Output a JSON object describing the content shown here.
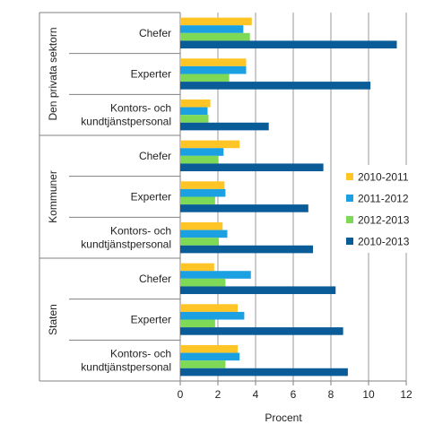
{
  "chart_data": {
    "type": "bar",
    "orientation": "horizontal",
    "xlabel": "Procent",
    "xlim": [
      0,
      12
    ],
    "xticks": [
      0,
      2,
      4,
      6,
      8,
      10,
      12
    ],
    "grid": "vertical",
    "legend_position": "right",
    "groups": [
      {
        "name": "Den privata sektorn",
        "categories": [
          {
            "label_lines": [
              "Chefer"
            ],
            "values": [
              3.8,
              3.35,
              3.7,
              11.5
            ]
          },
          {
            "label_lines": [
              "Experter"
            ],
            "values": [
              3.5,
              3.5,
              2.6,
              10.1
            ]
          },
          {
            "label_lines": [
              "Kontors- och",
              "kundtjänstpersonal"
            ],
            "values": [
              1.6,
              1.45,
              1.5,
              4.7
            ]
          }
        ]
      },
      {
        "name": "Kommuner",
        "categories": [
          {
            "label_lines": [
              "Chefer"
            ],
            "values": [
              3.15,
              2.3,
              2.0,
              7.6
            ]
          },
          {
            "label_lines": [
              "Experter"
            ],
            "values": [
              2.35,
              2.4,
              1.85,
              6.8
            ]
          },
          {
            "label_lines": [
              "Kontors- och",
              "kundtjänstpersonal"
            ],
            "values": [
              2.25,
              2.5,
              2.05,
              7.05
            ]
          }
        ]
      },
      {
        "name": "Staten",
        "categories": [
          {
            "label_lines": [
              "Chefer"
            ],
            "values": [
              1.8,
              3.75,
              2.4,
              8.25
            ]
          },
          {
            "label_lines": [
              "Experter"
            ],
            "values": [
              3.05,
              3.4,
              1.85,
              8.65
            ]
          },
          {
            "label_lines": [
              "Kontors- och",
              "kundtjänstpersonal"
            ],
            "values": [
              3.05,
              3.15,
              2.4,
              8.9
            ]
          }
        ]
      }
    ],
    "series": [
      {
        "name": "2010-2011",
        "color": "#ffc425"
      },
      {
        "name": "2011-2012",
        "color": "#1ba1e2"
      },
      {
        "name": "2012-2013",
        "color": "#7ed957"
      },
      {
        "name": "2010-2013",
        "color": "#0a5c99"
      }
    ]
  }
}
